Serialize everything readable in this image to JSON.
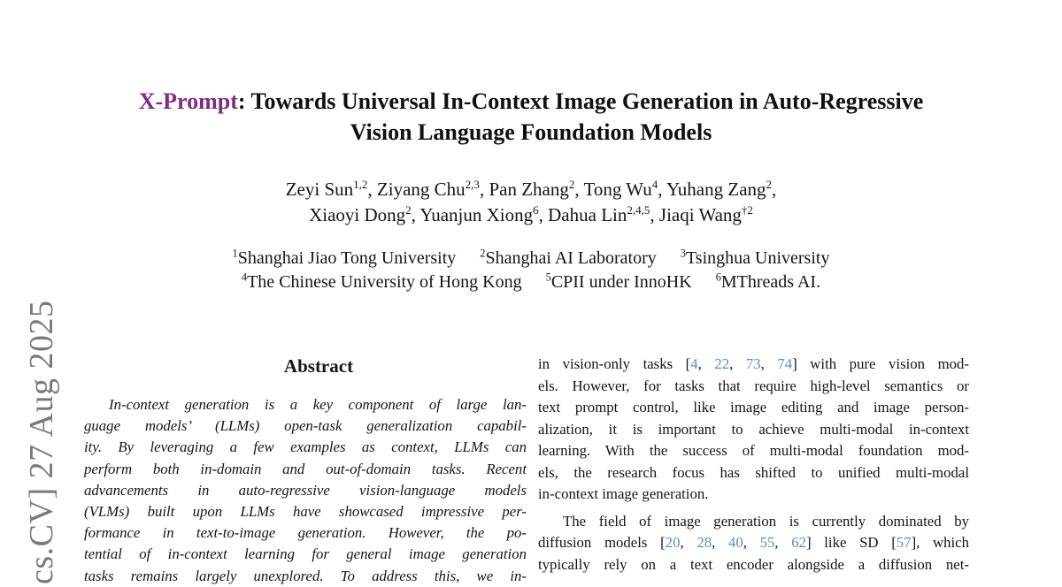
{
  "colors": {
    "brand": "#7d2d82",
    "cite": "#5a8cc4",
    "watermark": "#7a7a7a"
  },
  "watermark": {
    "text": "cs.CV] 27 Aug 2025"
  },
  "title": {
    "lines": [
      [
        {
          "brand": "X-Prompt"
        },
        {
          "t": ": Towards Universal In-Context Image Generation in Auto-Regressive"
        }
      ],
      [
        {
          "t": "Vision Language Foundation Models"
        }
      ]
    ]
  },
  "authors": {
    "lines": [
      [
        {
          "t": "Zeyi Sun"
        },
        {
          "sup": "1,2"
        },
        {
          "t": ", Ziyang Chu"
        },
        {
          "sup": "2,3"
        },
        {
          "t": ", Pan Zhang"
        },
        {
          "sup": "2"
        },
        {
          "t": ", Tong Wu"
        },
        {
          "sup": "4"
        },
        {
          "t": ", Yuhang Zang"
        },
        {
          "sup": "2"
        },
        {
          "t": ","
        }
      ],
      [
        {
          "t": "Xiaoyi Dong"
        },
        {
          "sup": "2"
        },
        {
          "t": ", Yuanjun Xiong"
        },
        {
          "sup": "6"
        },
        {
          "t": ", Dahua Lin"
        },
        {
          "sup": "2,4,5"
        },
        {
          "t": ", Jiaqi Wang"
        },
        {
          "sup": "†2"
        }
      ]
    ]
  },
  "affiliations": {
    "lines": [
      [
        {
          "sup": "1"
        },
        {
          "t": "Shanghai Jiao Tong University"
        },
        {
          "gap": true
        },
        {
          "sup": "2"
        },
        {
          "t": "Shanghai AI Laboratory"
        },
        {
          "gap": true
        },
        {
          "sup": "3"
        },
        {
          "t": "Tsinghua University"
        }
      ],
      [
        {
          "sup": "4"
        },
        {
          "t": "The Chinese University of Hong Kong"
        },
        {
          "gap": true
        },
        {
          "sup": "5"
        },
        {
          "t": "CPII under InnoHK"
        },
        {
          "gap": true
        },
        {
          "sup": "6"
        },
        {
          "t": "MThreads AI."
        }
      ]
    ]
  },
  "abstract": {
    "heading": "Abstract",
    "lines": [
      {
        "indent": true,
        "seg": [
          {
            "t": "In-context generation is a key component of large lan-"
          }
        ]
      },
      {
        "seg": [
          {
            "t": "guage models’ (LLMs) open-task generalization capabil-"
          }
        ]
      },
      {
        "seg": [
          {
            "t": "ity. By leveraging a few examples as context, LLMs can"
          }
        ]
      },
      {
        "seg": [
          {
            "t": "perform both in-domain and out-of-domain tasks. Recent"
          }
        ]
      },
      {
        "seg": [
          {
            "t": "advancements in auto-regressive vision-language models"
          }
        ]
      },
      {
        "seg": [
          {
            "t": "(VLMs) built upon LLMs have showcased impressive per-"
          }
        ]
      },
      {
        "seg": [
          {
            "t": "formance in text-to-image generation. However, the po-"
          }
        ]
      },
      {
        "seg": [
          {
            "t": "tential of in-context learning for general image generation"
          }
        ]
      },
      {
        "cut": true,
        "seg": [
          {
            "t": "tasks remains largely unexplored. To address this, we in-"
          }
        ]
      }
    ]
  },
  "right_column": {
    "paragraphs": [
      {
        "lines": [
          {
            "seg": [
              {
                "t": "in vision-only tasks ["
              },
              {
                "cite": "4"
              },
              {
                "t": ", "
              },
              {
                "cite": "22"
              },
              {
                "t": ", "
              },
              {
                "cite": "73"
              },
              {
                "t": ", "
              },
              {
                "cite": "74"
              },
              {
                "t": "] with pure vision mod-"
              }
            ]
          },
          {
            "seg": [
              {
                "t": "els. However, for tasks that require high-level semantics or"
              }
            ]
          },
          {
            "seg": [
              {
                "t": "text prompt control, like image editing and image person-"
              }
            ]
          },
          {
            "seg": [
              {
                "t": "alization, it is important to achieve multi-modal in-context"
              }
            ]
          },
          {
            "seg": [
              {
                "t": "learning. With the success of multi-modal foundation mod-"
              }
            ]
          },
          {
            "seg": [
              {
                "t": "els, the research focus has shifted to unified multi-modal"
              }
            ]
          },
          {
            "last": true,
            "seg": [
              {
                "t": "in-context image generation."
              }
            ]
          }
        ]
      },
      {
        "lines": [
          {
            "indent": true,
            "seg": [
              {
                "t": "The field of image generation is currently dominated by"
              }
            ]
          },
          {
            "seg": [
              {
                "t": "diffusion models ["
              },
              {
                "cite": "20"
              },
              {
                "t": ", "
              },
              {
                "cite": "28"
              },
              {
                "t": ", "
              },
              {
                "cite": "40"
              },
              {
                "t": ", "
              },
              {
                "cite": "55"
              },
              {
                "t": ", "
              },
              {
                "cite": "62"
              },
              {
                "t": "] like SD ["
              },
              {
                "cite": "57"
              },
              {
                "t": "], which"
              }
            ]
          },
          {
            "seg": [
              {
                "t": "typically rely on a text encoder alongside a diffusion net-"
              }
            ]
          }
        ]
      }
    ]
  }
}
